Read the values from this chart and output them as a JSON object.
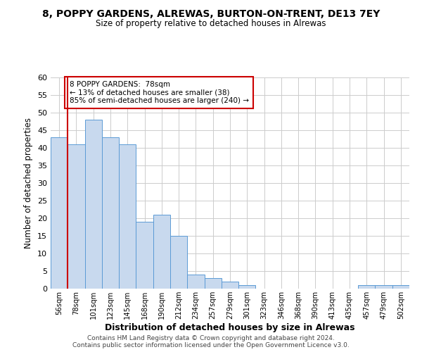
{
  "title": "8, POPPY GARDENS, ALREWAS, BURTON-ON-TRENT, DE13 7EY",
  "subtitle": "Size of property relative to detached houses in Alrewas",
  "xlabel": "Distribution of detached houses by size in Alrewas",
  "ylabel": "Number of detached properties",
  "bar_color": "#c8d9ee",
  "bar_edge_color": "#5b9bd5",
  "bin_labels": [
    "56sqm",
    "78sqm",
    "101sqm",
    "123sqm",
    "145sqm",
    "168sqm",
    "190sqm",
    "212sqm",
    "234sqm",
    "257sqm",
    "279sqm",
    "301sqm",
    "323sqm",
    "346sqm",
    "368sqm",
    "390sqm",
    "413sqm",
    "435sqm",
    "457sqm",
    "479sqm",
    "502sqm"
  ],
  "bar_heights": [
    43,
    41,
    48,
    43,
    41,
    19,
    21,
    15,
    4,
    3,
    2,
    1,
    0,
    0,
    0,
    0,
    0,
    0,
    1,
    1,
    1
  ],
  "ylim": [
    0,
    60
  ],
  "yticks": [
    0,
    5,
    10,
    15,
    20,
    25,
    30,
    35,
    40,
    45,
    50,
    55,
    60
  ],
  "property_line_color": "#cc0000",
  "annotation_title": "8 POPPY GARDENS:  78sqm",
  "annotation_line1": "← 13% of detached houses are smaller (38)",
  "annotation_line2": "85% of semi-detached houses are larger (240) →",
  "annotation_box_color": "#ffffff",
  "annotation_border_color": "#cc0000",
  "footer1": "Contains HM Land Registry data © Crown copyright and database right 2024.",
  "footer2": "Contains public sector information licensed under the Open Government Licence v3.0.",
  "grid_color": "#cccccc",
  "background_color": "#ffffff"
}
